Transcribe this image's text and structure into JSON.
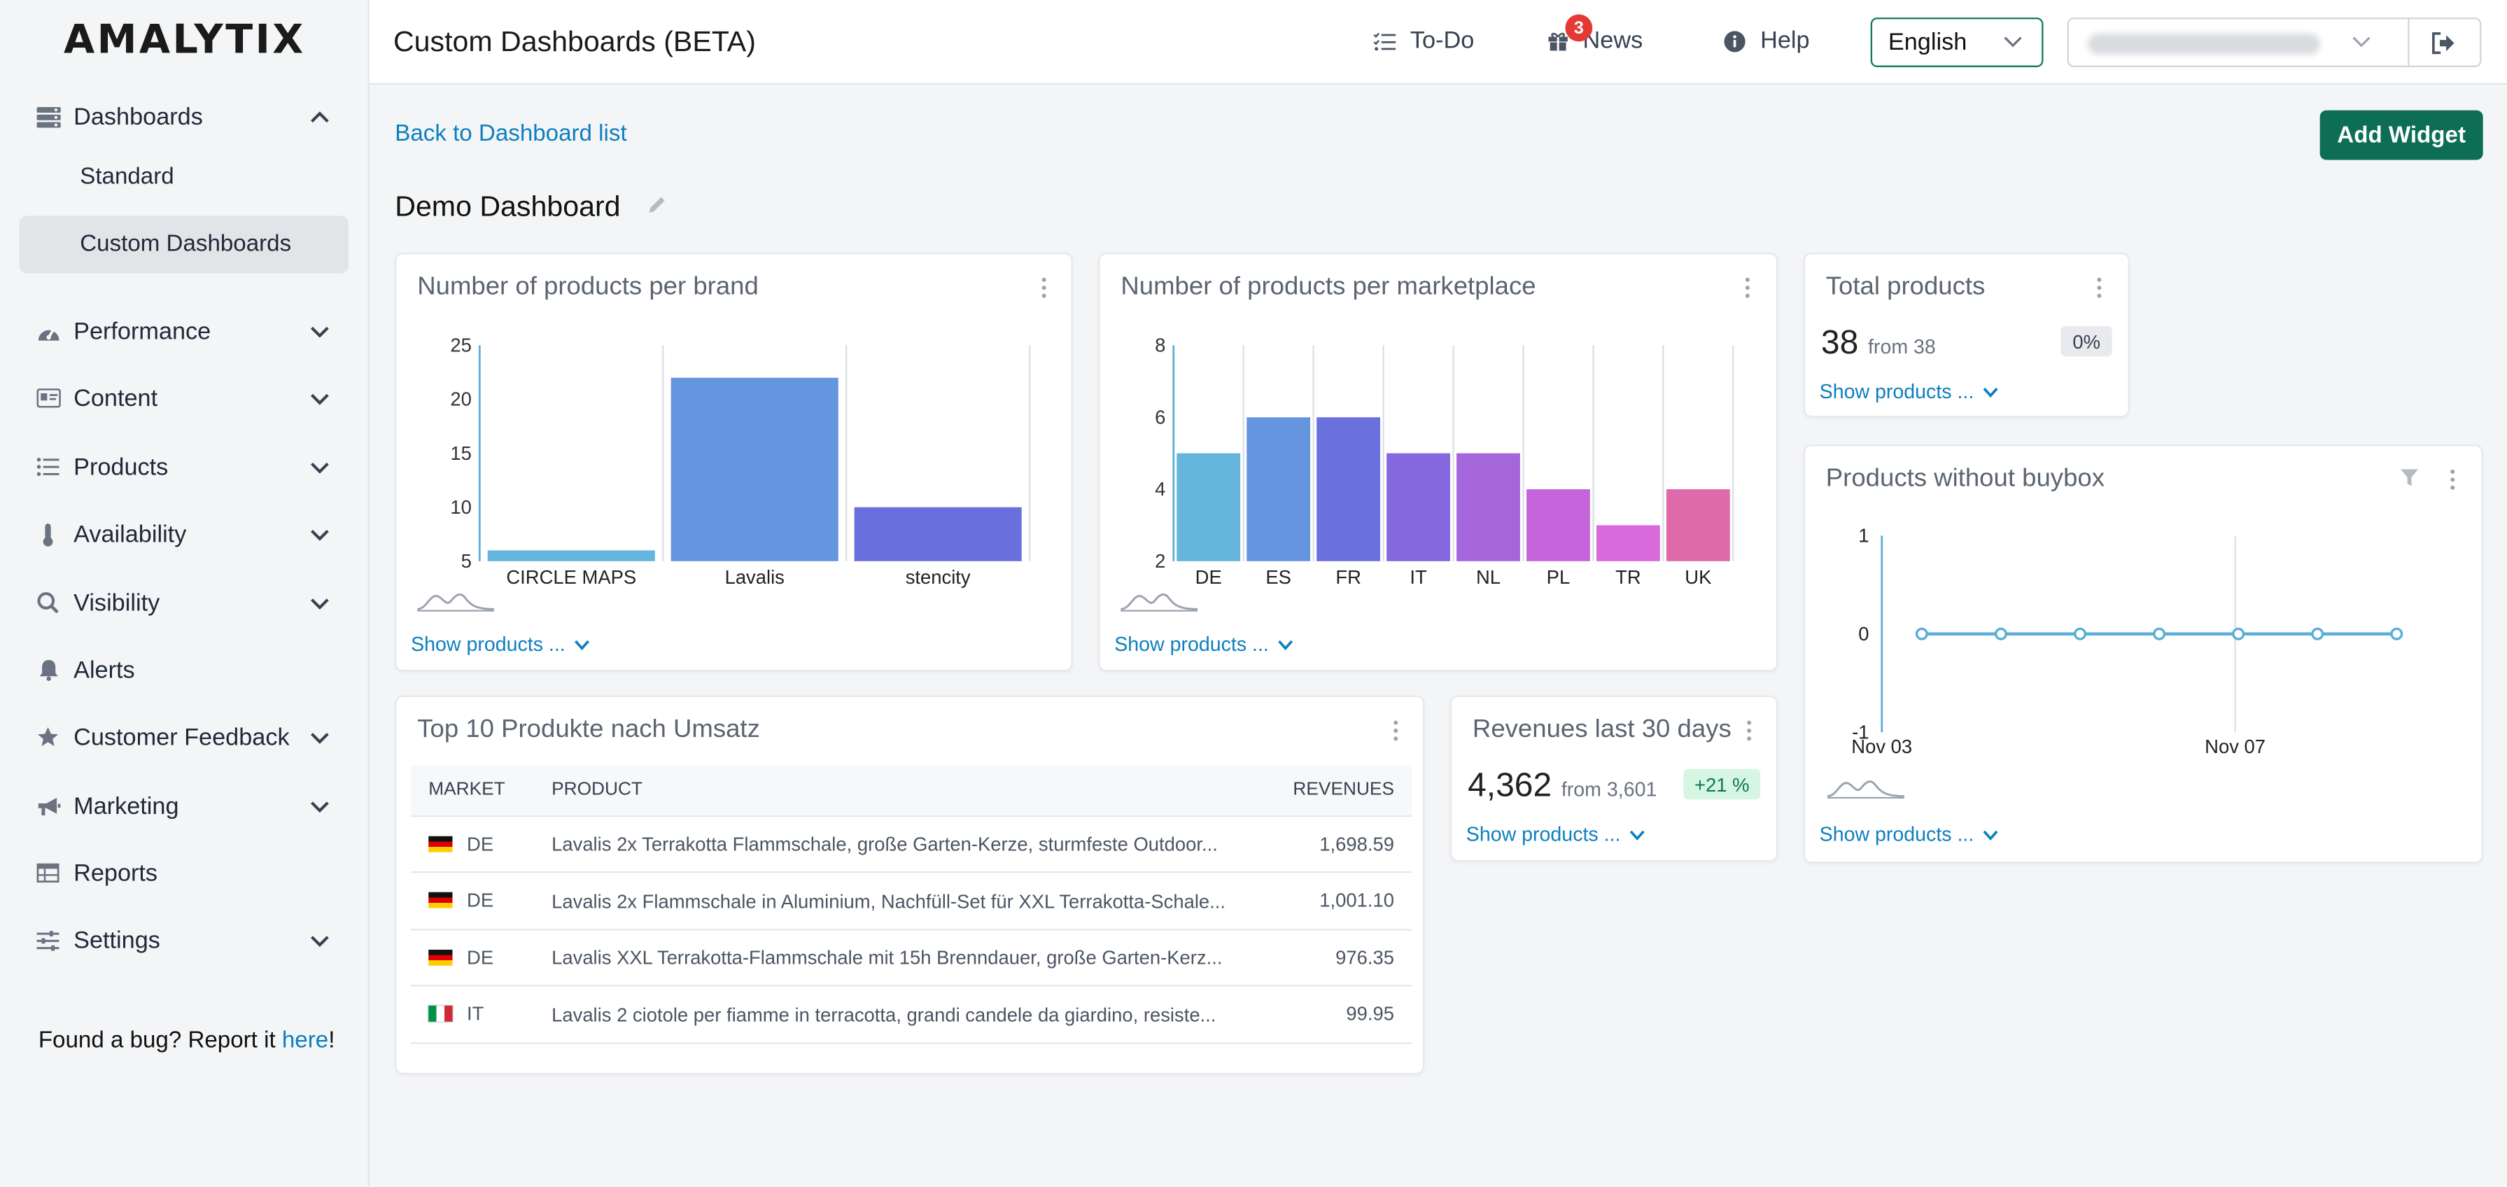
{
  "brand": "AMALYTIX",
  "sidebar": {
    "items": [
      {
        "label": "Dashboards",
        "icon": "dashboards-icon",
        "expanded": true
      },
      {
        "label": "Performance",
        "icon": "speedometer-icon"
      },
      {
        "label": "Content",
        "icon": "id-card-icon"
      },
      {
        "label": "Products",
        "icon": "list-icon"
      },
      {
        "label": "Availability",
        "icon": "thermometer-icon"
      },
      {
        "label": "Visibility",
        "icon": "search-icon"
      },
      {
        "label": "Alerts",
        "icon": "bell-icon"
      },
      {
        "label": "Customer Feedback",
        "icon": "star-icon"
      },
      {
        "label": "Marketing",
        "icon": "megaphone-icon"
      },
      {
        "label": "Reports",
        "icon": "table-icon"
      },
      {
        "label": "Settings",
        "icon": "sliders-icon"
      }
    ],
    "sub_items": [
      {
        "label": "Standard"
      },
      {
        "label": "Custom Dashboards",
        "active": true
      }
    ],
    "bug_text": "Found a bug? Report it ",
    "bug_link": "here",
    "bug_suffix": "!"
  },
  "header": {
    "title": "Custom Dashboards (BETA)",
    "todo": "To-Do",
    "news": "News",
    "news_badge": "3",
    "help": "Help",
    "language": "English"
  },
  "toolbar": {
    "back_link": "Back to Dashboard list",
    "add_widget": "Add Widget"
  },
  "dashboard_title": "Demo Dashboard",
  "show_products": "Show products ...",
  "widgets": {
    "brand": {
      "title": "Number of products per brand"
    },
    "marketplace": {
      "title": "Number of products per marketplace"
    },
    "total": {
      "title": "Total products",
      "value": "38",
      "from": "from 38",
      "change": "0%"
    },
    "buybox": {
      "title": "Products without buybox"
    },
    "top10": {
      "title": "Top 10 Produkte nach Umsatz",
      "columns": [
        "MARKET",
        "PRODUCT",
        "REVENUES"
      ],
      "rows": [
        {
          "flag": "de",
          "market": "DE",
          "product": "Lavalis 2x Terrakotta Flammschale, große Garten-Kerze, sturmfeste Outdoor...",
          "revenue": "1,698.59"
        },
        {
          "flag": "de",
          "market": "DE",
          "product": "Lavalis 2x Flammschale in Aluminium, Nachfüll-Set für XXL Terrakotta-Schale...",
          "revenue": "1,001.10"
        },
        {
          "flag": "de",
          "market": "DE",
          "product": "Lavalis XXL Terrakotta-Flammschale mit 15h Brenndauer, große Garten-Kerz...",
          "revenue": "976.35"
        },
        {
          "flag": "it",
          "market": "IT",
          "product": "Lavalis 2 ciotole per fiamme in terracotta, grandi candele da giardino, resiste...",
          "revenue": "99.95"
        }
      ]
    },
    "revenues": {
      "title": "Revenues last 30 days",
      "value": "4,362",
      "from": "from 3,601",
      "change": "+21 %"
    }
  },
  "chart_data": [
    {
      "type": "bar",
      "title": "Number of products per brand",
      "categories": [
        "CIRCLE MAPS",
        "Lavalis",
        "stencity"
      ],
      "values": [
        6,
        22,
        10
      ],
      "colors": [
        "#66b5dc",
        "#6695df",
        "#6a6fde"
      ],
      "yticks": [
        5,
        10,
        15,
        20,
        25
      ],
      "ylim": [
        5,
        25
      ]
    },
    {
      "type": "bar",
      "title": "Number of products per marketplace",
      "categories": [
        "DE",
        "ES",
        "FR",
        "IT",
        "NL",
        "PL",
        "TR",
        "UK"
      ],
      "values": [
        5,
        6,
        6,
        5,
        5,
        4,
        3,
        4
      ],
      "colors": [
        "#65b5dc",
        "#6595df",
        "#6a70de",
        "#8667de",
        "#a566db",
        "#c665db",
        "#d96adb",
        "#de6aab"
      ],
      "yticks": [
        2,
        4,
        6,
        8
      ],
      "ylim": [
        2,
        8
      ]
    },
    {
      "type": "line",
      "title": "Products without buybox",
      "x": [
        "Nov 03",
        "Nov 04",
        "Nov 05",
        "Nov 06",
        "Nov 07",
        "Nov 08",
        "Nov 09"
      ],
      "xticks": [
        "Nov 03",
        "Nov 07"
      ],
      "values": [
        0,
        0,
        0,
        0,
        0,
        0,
        0
      ],
      "yticks": [
        -1,
        0,
        1
      ],
      "ylim": [
        -1,
        1
      ],
      "color": "#5aaed8"
    }
  ]
}
